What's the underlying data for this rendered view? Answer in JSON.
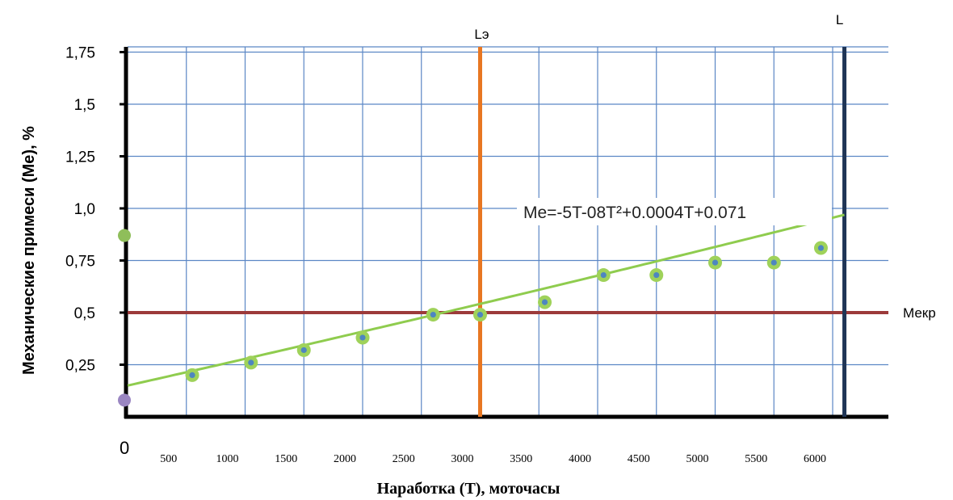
{
  "chart_data": {
    "type": "scatter",
    "title": "",
    "xlabel": "Наработка (T), моточасы",
    "ylabel": "Механические примеси (Ме), %",
    "xlim": [
      0,
      6200
    ],
    "ylim": [
      0,
      1.85
    ],
    "x_ticks": [
      500,
      1000,
      1500,
      2000,
      2500,
      3000,
      3500,
      4000,
      4500,
      5000,
      5500,
      6000
    ],
    "x_tick_labels": [
      "500",
      "1000",
      "1500",
      "2000",
      "2500",
      "3000",
      "3500",
      "4000",
      "4500",
      "5000",
      "5500",
      "6000"
    ],
    "zero_label": "0",
    "y_ticks": [
      0.25,
      0.5,
      0.75,
      1.0,
      1.25,
      1.5,
      1.75
    ],
    "y_tick_labels": [
      "0,25",
      "0,5",
      "0,75",
      "1,0",
      "1,25",
      "1,5",
      "1,75"
    ],
    "grid": true,
    "points": [
      {
        "x": 550,
        "y": 0.2
      },
      {
        "x": 1050,
        "y": 0.26
      },
      {
        "x": 1500,
        "y": 0.32
      },
      {
        "x": 2000,
        "y": 0.38
      },
      {
        "x": 2600,
        "y": 0.49
      },
      {
        "x": 3000,
        "y": 0.49
      },
      {
        "x": 3550,
        "y": 0.55
      },
      {
        "x": 4050,
        "y": 0.68
      },
      {
        "x": 4500,
        "y": 0.68
      },
      {
        "x": 5000,
        "y": 0.74
      },
      {
        "x": 5500,
        "y": 0.74
      },
      {
        "x": 5900,
        "y": 0.81
      }
    ],
    "trendline": {
      "equation": "Me=-5T-08T²+0.0004T+0.071",
      "x_start": 0,
      "x_end": 6100,
      "coefficients": {
        "a": -5e-08,
        "b": 0.0004,
        "c": 0.071
      }
    },
    "y_axis_markers": [
      {
        "y": 0.87,
        "color": "#8fbe5a"
      },
      {
        "y": 0.08,
        "color": "#9a86c2"
      }
    ],
    "reference_lines": {
      "vertical": [
        {
          "label": "Lэ",
          "x": 3000,
          "color": "#e87722"
        },
        {
          "label": "L",
          "x": 6100,
          "color": "#1f3556"
        }
      ],
      "horizontal": [
        {
          "label": "Мекр",
          "y": 0.5,
          "color": "#9c3a3a"
        }
      ]
    },
    "colors": {
      "grid": "#5b87c5",
      "trend": "#8fcc4e",
      "point_outer": "#9fd25a",
      "point_inner": "#4e86c0"
    }
  }
}
